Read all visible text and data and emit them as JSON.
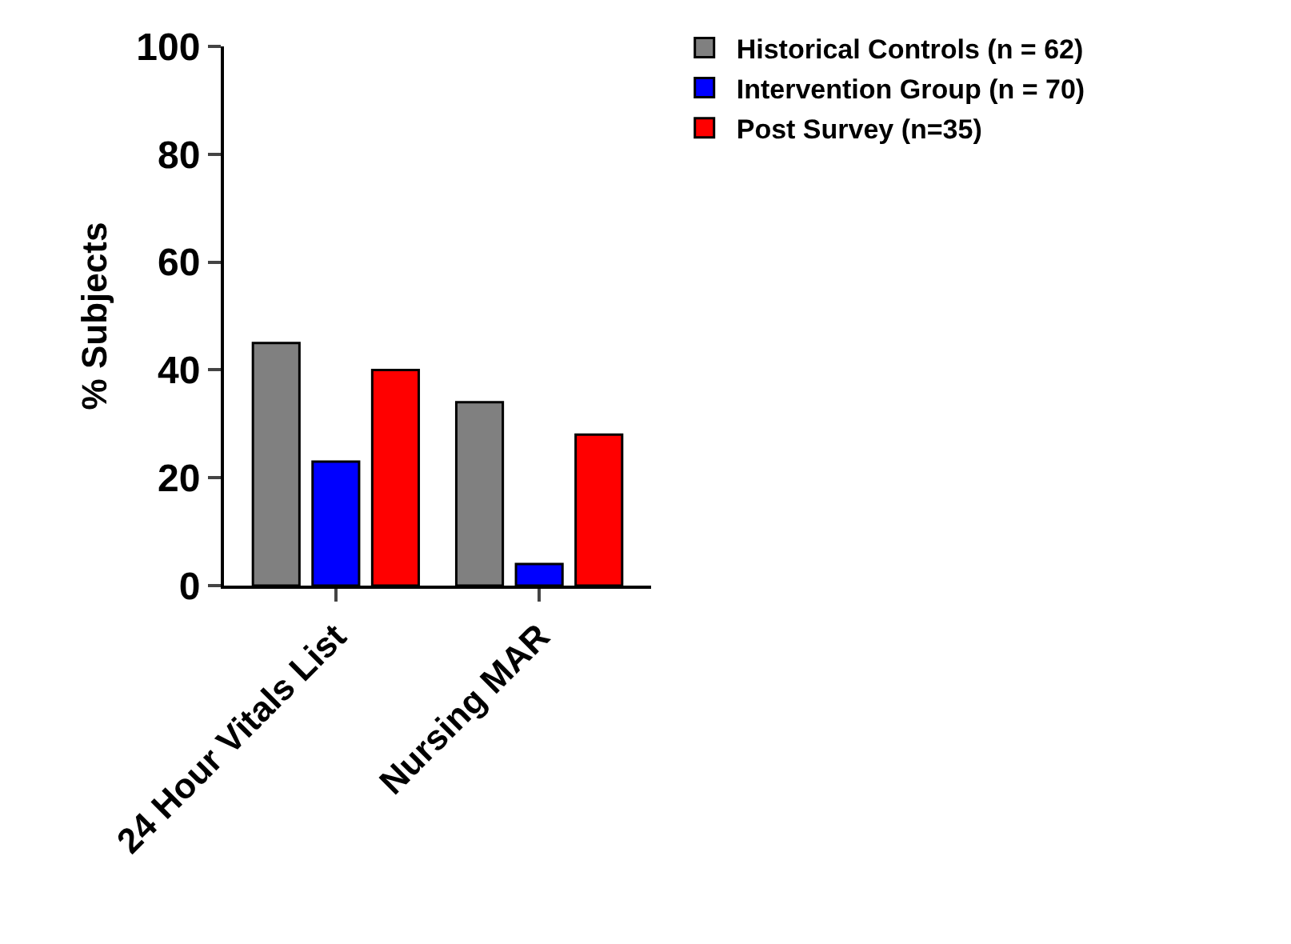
{
  "chart_data": {
    "type": "bar",
    "ylabel": "% Subjects",
    "categories": [
      "24 Hour Vitals List",
      "Nursing MAR"
    ],
    "series": [
      {
        "name": "Historical Controls (n = 62)",
        "color": "#808080",
        "values": [
          45,
          34
        ]
      },
      {
        "name": "Intervention Group (n = 70)",
        "color": "#0000ff",
        "values": [
          23,
          4
        ]
      },
      {
        "name": "Post Survey (n=35)",
        "color": "#ff0000",
        "values": [
          40,
          28
        ]
      }
    ],
    "ylim": [
      0,
      100
    ],
    "yticks": [
      0,
      20,
      40,
      60,
      80,
      100
    ],
    "grid": false,
    "legend": "top right"
  }
}
